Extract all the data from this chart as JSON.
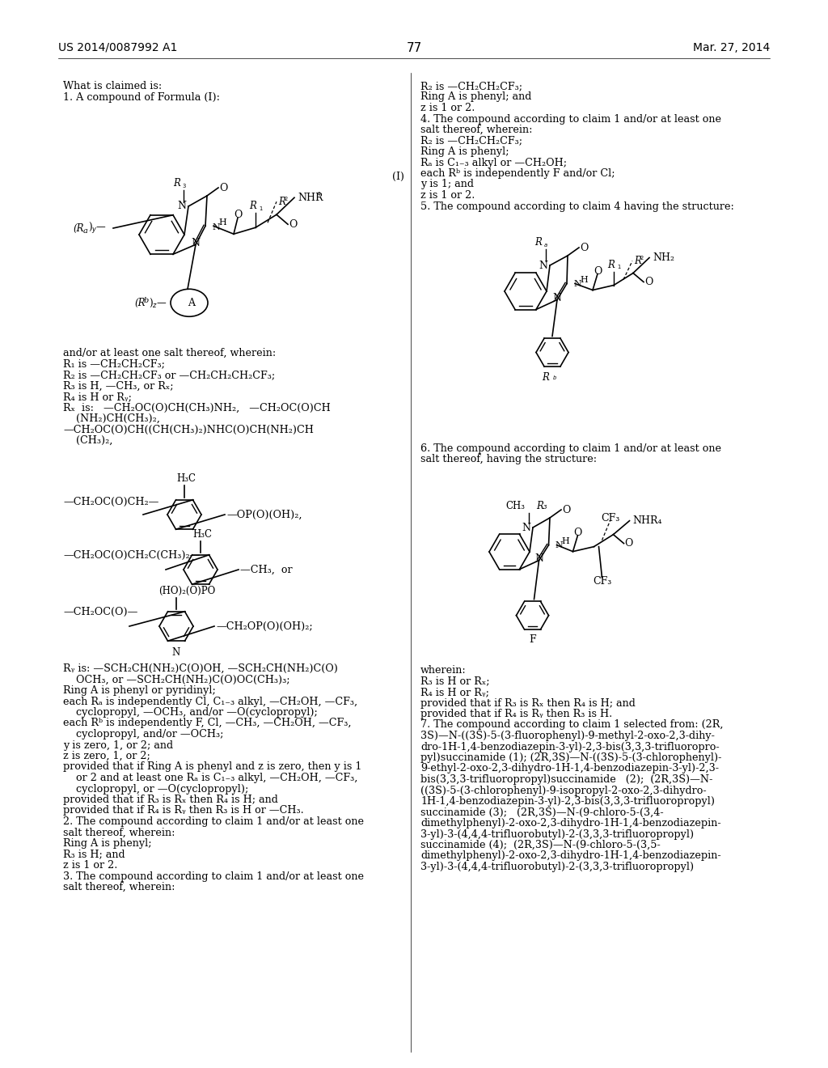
{
  "background_color": "#ffffff",
  "page_number": "77",
  "header_left": "US 2014/0087992 A1",
  "header_right": "Mar. 27, 2014"
}
